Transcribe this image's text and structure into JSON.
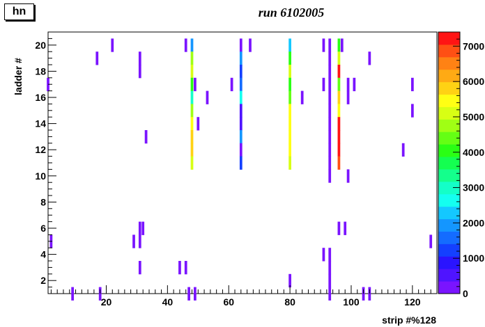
{
  "stat_box": {
    "name": "hn"
  },
  "chart_data": {
    "type": "heatmap",
    "title": "run 6102005",
    "xlabel": "strip #%128",
    "ylabel": "ladder #",
    "xlim": [
      1,
      128
    ],
    "ylim": [
      1,
      21
    ],
    "x_ticks": [
      20,
      40,
      60,
      80,
      100,
      120
    ],
    "y_ticks": [
      2,
      4,
      6,
      8,
      10,
      12,
      14,
      16,
      18,
      20
    ],
    "z_ticks": [
      0,
      1000,
      2000,
      3000,
      4000,
      5000,
      6000,
      7000
    ],
    "z_tick_labels": [
      "0",
      "1000",
      "2000",
      "3000",
      "4000",
      "5000",
      "6000",
      "7000"
    ],
    "zlim": [
      0,
      7400
    ],
    "palette": [
      "#7a14ff",
      "#4f14ff",
      "#2a14ff",
      "#1440ff",
      "#146cff",
      "#1496ff",
      "#14c8ff",
      "#14fff0",
      "#14ffc8",
      "#14ff8c",
      "#14ff50",
      "#2aff14",
      "#64ff14",
      "#a0ff14",
      "#d8ff14",
      "#ffff14",
      "#ffd214",
      "#ffaa14",
      "#ff8214",
      "#ff5014",
      "#ff1414"
    ],
    "cells": [
      {
        "x": 48,
        "y": 20,
        "v": 1800
      },
      {
        "x": 48,
        "y": 19,
        "v": 4700
      },
      {
        "x": 48,
        "y": 18,
        "v": 5200
      },
      {
        "x": 48,
        "y": 17,
        "v": 4000
      },
      {
        "x": 48,
        "y": 16,
        "v": 3000
      },
      {
        "x": 48,
        "y": 15,
        "v": 4600
      },
      {
        "x": 48,
        "y": 14,
        "v": 5300
      },
      {
        "x": 48,
        "y": 13,
        "v": 5900
      },
      {
        "x": 48,
        "y": 12,
        "v": 5900
      },
      {
        "x": 48,
        "y": 11,
        "v": 5000
      },
      {
        "x": 64,
        "y": 20,
        "v": 100
      },
      {
        "x": 64,
        "y": 19,
        "v": 1800
      },
      {
        "x": 64,
        "y": 18,
        "v": 1200
      },
      {
        "x": 64,
        "y": 17,
        "v": 1600
      },
      {
        "x": 64,
        "y": 16,
        "v": 2800
      },
      {
        "x": 64,
        "y": 15,
        "v": 700
      },
      {
        "x": 64,
        "y": 14,
        "v": 700
      },
      {
        "x": 64,
        "y": 13,
        "v": 1800
      },
      {
        "x": 64,
        "y": 12,
        "v": 300
      },
      {
        "x": 64,
        "y": 11,
        "v": 1200
      },
      {
        "x": 80,
        "y": 20,
        "v": 2200
      },
      {
        "x": 80,
        "y": 19,
        "v": 4000
      },
      {
        "x": 80,
        "y": 18,
        "v": 5000
      },
      {
        "x": 80,
        "y": 17,
        "v": 3900
      },
      {
        "x": 80,
        "y": 16,
        "v": 4500
      },
      {
        "x": 80,
        "y": 15,
        "v": 5300
      },
      {
        "x": 80,
        "y": 14,
        "v": 5600
      },
      {
        "x": 80,
        "y": 13,
        "v": 5600
      },
      {
        "x": 80,
        "y": 12,
        "v": 5600
      },
      {
        "x": 80,
        "y": 11,
        "v": 5100
      },
      {
        "x": 80,
        "y": 2,
        "v": 100
      },
      {
        "x": 93,
        "y": 20,
        "v": 300
      },
      {
        "x": 93,
        "y": 19,
        "v": 300
      },
      {
        "x": 93,
        "y": 18,
        "v": 300
      },
      {
        "x": 93,
        "y": 17,
        "v": 300
      },
      {
        "x": 93,
        "y": 16,
        "v": 300
      },
      {
        "x": 93,
        "y": 15,
        "v": 300
      },
      {
        "x": 93,
        "y": 14,
        "v": 300
      },
      {
        "x": 93,
        "y": 13,
        "v": 300
      },
      {
        "x": 93,
        "y": 12,
        "v": 300
      },
      {
        "x": 93,
        "y": 11,
        "v": 300
      },
      {
        "x": 93,
        "y": 10,
        "v": 100
      },
      {
        "x": 93,
        "y": 4,
        "v": 100
      },
      {
        "x": 93,
        "y": 3,
        "v": 100
      },
      {
        "x": 93,
        "y": 2,
        "v": 100
      },
      {
        "x": 93,
        "y": 1,
        "v": 100
      },
      {
        "x": 96,
        "y": 20,
        "v": 4100
      },
      {
        "x": 96,
        "y": 19,
        "v": 5000
      },
      {
        "x": 96,
        "y": 18,
        "v": 7300
      },
      {
        "x": 96,
        "y": 17,
        "v": 4500
      },
      {
        "x": 96,
        "y": 16,
        "v": 5900
      },
      {
        "x": 96,
        "y": 15,
        "v": 5300
      },
      {
        "x": 96,
        "y": 14,
        "v": 7300
      },
      {
        "x": 96,
        "y": 13,
        "v": 7300
      },
      {
        "x": 96,
        "y": 12,
        "v": 7300
      },
      {
        "x": 96,
        "y": 11,
        "v": 6700
      },
      {
        "x": 22,
        "y": 20,
        "v": 100
      },
      {
        "x": 46,
        "y": 20,
        "v": 100
      },
      {
        "x": 67,
        "y": 20,
        "v": 100
      },
      {
        "x": 91,
        "y": 20,
        "v": 100
      },
      {
        "x": 97,
        "y": 20,
        "v": 100
      },
      {
        "x": 17,
        "y": 19,
        "v": 100
      },
      {
        "x": 31,
        "y": 19,
        "v": 100
      },
      {
        "x": 106,
        "y": 19,
        "v": 100
      },
      {
        "x": 31,
        "y": 18,
        "v": 100
      },
      {
        "x": 1,
        "y": 17,
        "v": 100
      },
      {
        "x": 49,
        "y": 17,
        "v": 100
      },
      {
        "x": 61,
        "y": 17,
        "v": 100
      },
      {
        "x": 91,
        "y": 17,
        "v": 100
      },
      {
        "x": 99,
        "y": 17,
        "v": 100
      },
      {
        "x": 101,
        "y": 17,
        "v": 100
      },
      {
        "x": 120,
        "y": 17,
        "v": 100
      },
      {
        "x": 53,
        "y": 16,
        "v": 100
      },
      {
        "x": 84,
        "y": 16,
        "v": 100
      },
      {
        "x": 99,
        "y": 16,
        "v": 100
      },
      {
        "x": 120,
        "y": 15,
        "v": 100
      },
      {
        "x": 50,
        "y": 14,
        "v": 100
      },
      {
        "x": 33,
        "y": 13,
        "v": 100
      },
      {
        "x": 117,
        "y": 12,
        "v": 100
      },
      {
        "x": 99,
        "y": 10,
        "v": 100
      },
      {
        "x": 31,
        "y": 6,
        "v": 100
      },
      {
        "x": 32,
        "y": 6,
        "v": 100
      },
      {
        "x": 96,
        "y": 6,
        "v": 100
      },
      {
        "x": 98,
        "y": 6,
        "v": 100
      },
      {
        "x": 2,
        "y": 5,
        "v": 100
      },
      {
        "x": 29,
        "y": 5,
        "v": 100
      },
      {
        "x": 31,
        "y": 5,
        "v": 100
      },
      {
        "x": 126,
        "y": 5,
        "v": 100
      },
      {
        "x": 91,
        "y": 4,
        "v": 100
      },
      {
        "x": 31,
        "y": 3,
        "v": 100
      },
      {
        "x": 44,
        "y": 3,
        "v": 100
      },
      {
        "x": 46,
        "y": 3,
        "v": 100
      },
      {
        "x": 9,
        "y": 1,
        "v": 100
      },
      {
        "x": 18,
        "y": 1,
        "v": 100
      },
      {
        "x": 47,
        "y": 1,
        "v": 100
      },
      {
        "x": 49,
        "y": 1,
        "v": 100
      },
      {
        "x": 104,
        "y": 1,
        "v": 100
      },
      {
        "x": 106,
        "y": 1,
        "v": 100
      }
    ]
  }
}
